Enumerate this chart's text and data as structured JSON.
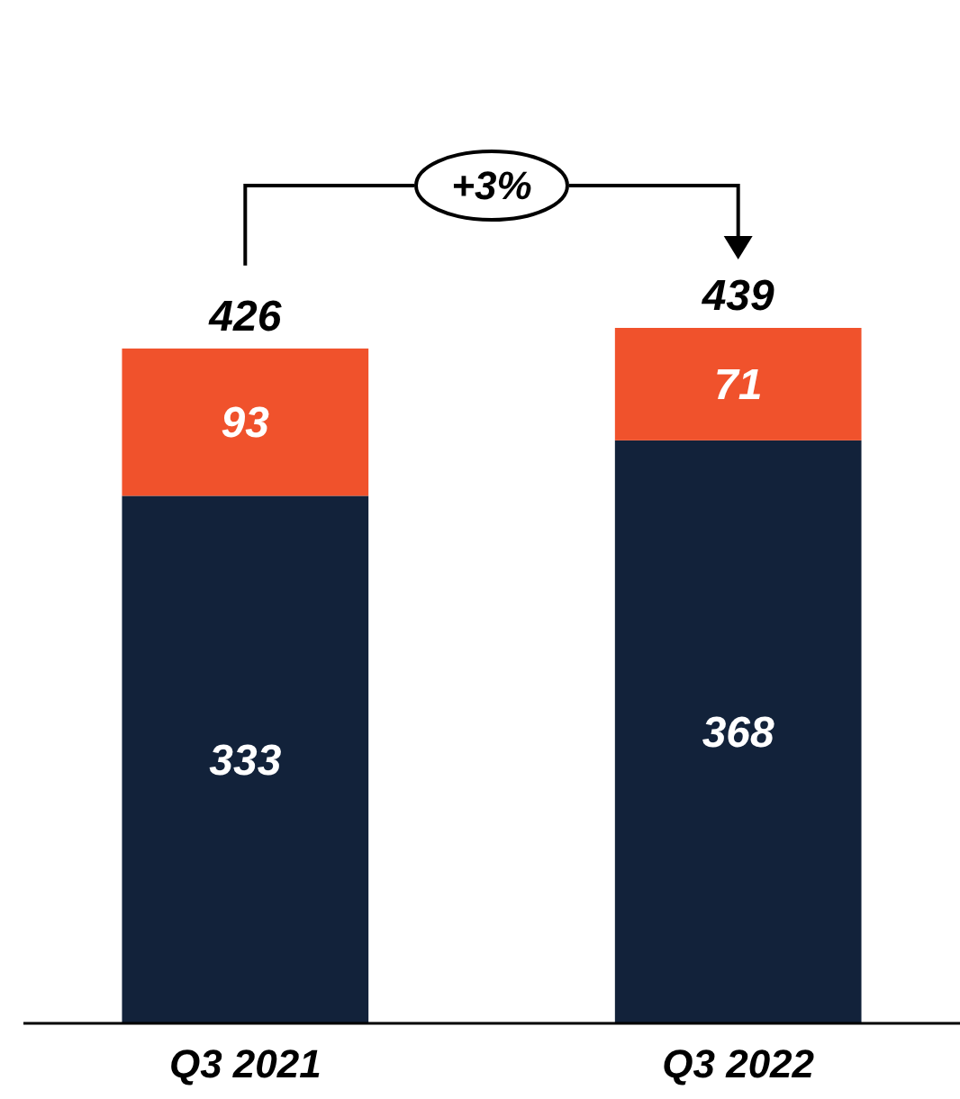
{
  "chart_data": {
    "type": "bar",
    "stacked": true,
    "categories": [
      "Q3 2021",
      "Q3 2022"
    ],
    "series": [
      {
        "color": "#12223a",
        "values": [
          333,
          368
        ]
      },
      {
        "color": "#f0522c",
        "values": [
          93,
          71
        ]
      }
    ],
    "data_labels": true,
    "totals": [
      "426",
      "439"
    ],
    "annotations": [
      "+3%"
    ]
  }
}
